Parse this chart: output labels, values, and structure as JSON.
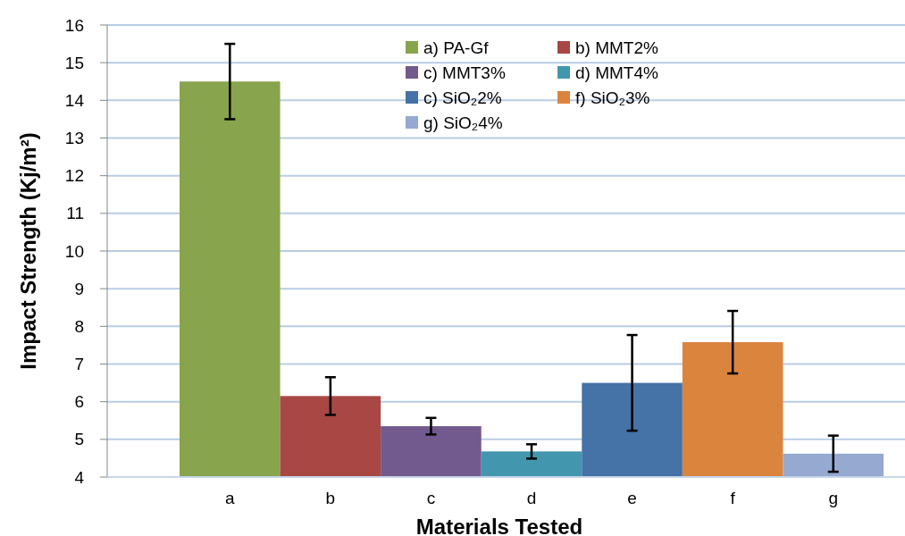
{
  "chart_data": {
    "type": "bar",
    "xlabel": "Materials Tested",
    "ylabel": "Impact  Strength (Kj/m²)",
    "categories": [
      "a",
      "b",
      "c",
      "d",
      "e",
      "f",
      "g"
    ],
    "series": [
      {
        "name": "a) PA-Gf",
        "color": "#88a44c",
        "values": [
          14.5,
          null,
          null,
          null,
          null,
          null,
          null
        ],
        "errors": [
          1.0,
          null,
          null,
          null,
          null,
          null,
          null
        ]
      },
      {
        "name": "b) MMT2%",
        "color": "#a84744",
        "values": [
          null,
          6.15,
          null,
          null,
          null,
          null,
          null
        ],
        "errors": [
          null,
          0.5,
          null,
          null,
          null,
          null,
          null
        ]
      },
      {
        "name": "c) MMT3%",
        "color": "#725a8e",
        "values": [
          null,
          null,
          5.35,
          null,
          null,
          null,
          null
        ],
        "errors": [
          null,
          null,
          0.22,
          null,
          null,
          null,
          null
        ]
      },
      {
        "name": "d) MMT4%",
        "color": "#4297af",
        "values": [
          null,
          null,
          null,
          4.68,
          null,
          null,
          null
        ],
        "errors": [
          null,
          null,
          null,
          0.19,
          null,
          null,
          null
        ]
      },
      {
        "name": "c) SiO₂2%",
        "color": "#4572a7",
        "values": [
          null,
          null,
          null,
          null,
          6.5,
          null,
          null
        ],
        "errors": [
          null,
          null,
          null,
          null,
          1.27,
          null,
          null
        ]
      },
      {
        "name": "f) SiO₂3%",
        "color": "#db843d",
        "values": [
          null,
          null,
          null,
          null,
          null,
          7.58,
          null
        ],
        "errors": [
          null,
          null,
          null,
          null,
          null,
          0.83,
          null
        ]
      },
      {
        "name": "g) SiO₂4%",
        "color": "#95a9d1",
        "values": [
          null,
          null,
          null,
          null,
          null,
          null,
          4.62
        ],
        "errors": [
          null,
          null,
          null,
          null,
          null,
          null,
          0.48
        ]
      }
    ],
    "ylim": [
      4,
      16
    ],
    "yticks": [
      4,
      5,
      6,
      7,
      8,
      9,
      10,
      11,
      12,
      13,
      14,
      15,
      16
    ],
    "grid": "y",
    "legend": "top right"
  }
}
